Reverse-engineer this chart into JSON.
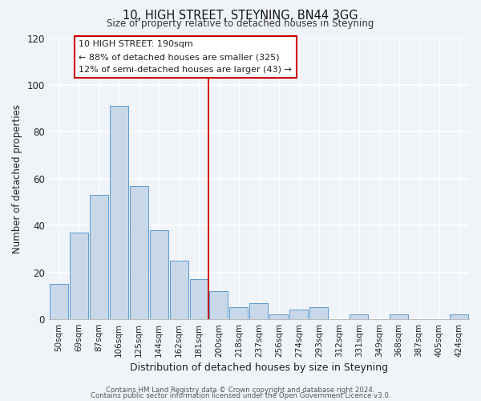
{
  "title": "10, HIGH STREET, STEYNING, BN44 3GG",
  "subtitle": "Size of property relative to detached houses in Steyning",
  "xlabel": "Distribution of detached houses by size in Steyning",
  "ylabel": "Number of detached properties",
  "bar_labels": [
    "50sqm",
    "69sqm",
    "87sqm",
    "106sqm",
    "125sqm",
    "144sqm",
    "162sqm",
    "181sqm",
    "200sqm",
    "218sqm",
    "237sqm",
    "256sqm",
    "274sqm",
    "293sqm",
    "312sqm",
    "331sqm",
    "349sqm",
    "368sqm",
    "387sqm",
    "405sqm",
    "424sqm"
  ],
  "bar_values": [
    15,
    37,
    53,
    91,
    57,
    38,
    25,
    17,
    12,
    5,
    7,
    2,
    4,
    5,
    0,
    2,
    0,
    2,
    0,
    0,
    2
  ],
  "bar_color": "#c8d8e8",
  "bar_edge_color": "#5b9bd5",
  "ylim": [
    0,
    120
  ],
  "yticks": [
    0,
    20,
    40,
    60,
    80,
    100,
    120
  ],
  "vline_color": "#cc0000",
  "annotation_title": "10 HIGH STREET: 190sqm",
  "annotation_line1": "← 88% of detached houses are smaller (325)",
  "annotation_line2": "12% of semi-detached houses are larger (43) →",
  "annotation_box_color": "#ffffff",
  "annotation_box_edge": "#cc0000",
  "footer1": "Contains HM Land Registry data © Crown copyright and database right 2024.",
  "footer2": "Contains public sector information licensed under the Open Government Licence v3.0.",
  "bg_color": "#f0f4f8",
  "grid_color": "#ffffff"
}
